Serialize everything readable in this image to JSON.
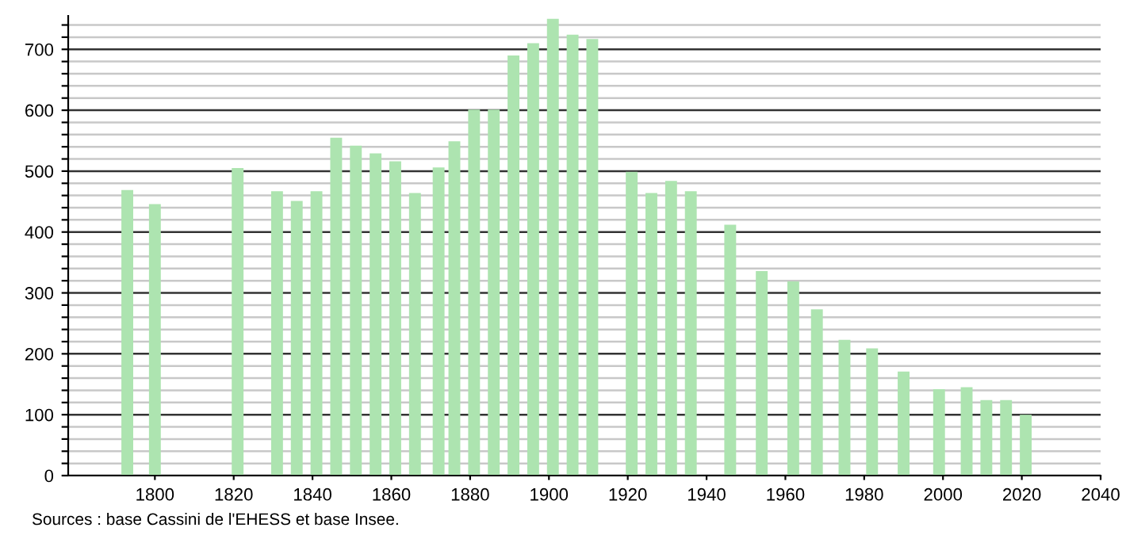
{
  "chart_data": {
    "type": "bar",
    "color": "#ade4b0",
    "x": [
      1793,
      1800,
      1821,
      1831,
      1836,
      1841,
      1846,
      1851,
      1856,
      1861,
      1866,
      1872,
      1876,
      1881,
      1886,
      1891,
      1896,
      1901,
      1906,
      1911,
      1921,
      1926,
      1931,
      1936,
      1946,
      1954,
      1962,
      1968,
      1975,
      1982,
      1990,
      1999,
      2006,
      2011,
      2016,
      2021
    ],
    "values": [
      469,
      446,
      505,
      467,
      451,
      467,
      555,
      542,
      529,
      516,
      464,
      506,
      549,
      601,
      601,
      690,
      710,
      750,
      724,
      717,
      499,
      464,
      484,
      467,
      412,
      336,
      319,
      273,
      223,
      209,
      171,
      142,
      145,
      124,
      124,
      100
    ],
    "xlim": [
      1778,
      2040
    ],
    "xticks": [
      1800,
      1820,
      1840,
      1860,
      1880,
      1900,
      1920,
      1940,
      1960,
      1980,
      2000,
      2020,
      2040
    ],
    "ylim": [
      0,
      755
    ],
    "yticks": [
      0,
      {
        "value": 20,
        "label": null
      },
      {
        "value": 40,
        "label": null
      },
      {
        "value": 60,
        "label": null
      },
      {
        "value": 80,
        "label": null
      },
      100,
      {
        "value": 120,
        "label": null
      },
      {
        "value": 140,
        "label": null
      },
      {
        "value": 160,
        "label": null
      },
      {
        "value": 180,
        "label": null
      },
      200,
      {
        "value": 220,
        "label": null
      },
      {
        "value": 240,
        "label": null
      },
      {
        "value": 260,
        "label": null
      },
      {
        "value": 280,
        "label": null
      },
      300,
      {
        "value": 320,
        "label": null
      },
      {
        "value": 340,
        "label": null
      },
      {
        "value": 360,
        "label": null
      },
      {
        "value": 380,
        "label": null
      },
      400,
      {
        "value": 420,
        "label": null
      },
      {
        "value": 440,
        "label": null
      },
      {
        "value": 460,
        "label": null
      },
      {
        "value": 480,
        "label": null
      },
      500,
      {
        "value": 520,
        "label": null
      },
      {
        "value": 540,
        "label": null
      },
      {
        "value": 560,
        "label": null
      },
      {
        "value": 580,
        "label": null
      },
      600,
      {
        "value": 620,
        "label": null
      },
      {
        "value": 640,
        "label": null
      },
      {
        "value": 660,
        "label": null
      },
      {
        "value": 680,
        "label": null
      },
      700,
      {
        "value": 720,
        "label": null
      },
      {
        "value": 740,
        "label": null
      }
    ],
    "grid": "y",
    "annotations": [
      "Sources : base Cassini de l'EHESS et base Insee."
    ]
  }
}
